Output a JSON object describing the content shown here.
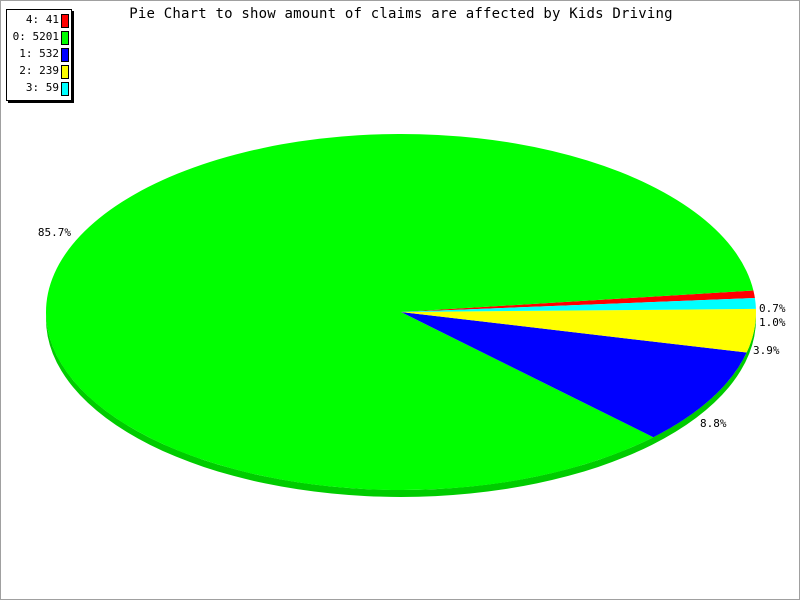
{
  "chart_data": {
    "type": "pie",
    "title": "Pie Chart to show amount of claims are affected by Kids Driving",
    "slices": [
      {
        "label": "4",
        "value": 41,
        "percent_label": "0.7%",
        "color": "#ff0000"
      },
      {
        "label": "0",
        "value": 5201,
        "percent_label": "85.7%",
        "color": "#00ff00"
      },
      {
        "label": "1",
        "value": 532,
        "percent_label": "8.8%",
        "color": "#0000ff"
      },
      {
        "label": "2",
        "value": 239,
        "percent_label": "3.9%",
        "color": "#ffff00"
      },
      {
        "label": "3",
        "value": 59,
        "percent_label": "1.0%",
        "color": "#00ffff"
      }
    ],
    "legend": {
      "placement": "top-left",
      "entries": [
        "4: 41",
        "0: 5201",
        "1: 532",
        "2: 239",
        "3: 59"
      ]
    },
    "style": "3d-elliptical",
    "depth_color_shade": "#00cc00"
  }
}
